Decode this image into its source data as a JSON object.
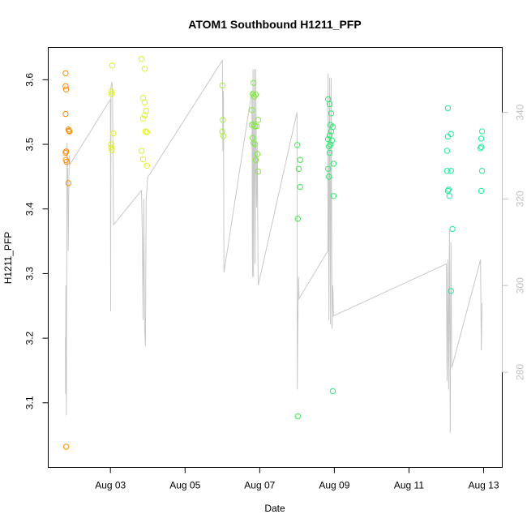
{
  "chart_data": {
    "type": "scatter",
    "title": "ATOM1 Southbound H1211_PFP",
    "xlabel": "Date",
    "ylabel": "H1211_PFP",
    "xlim": [
      "2023-08-01 08:00",
      "2023-08-13 12:00"
    ],
    "ylim": [
      3.0,
      3.65
    ],
    "x_ticks": [
      "Aug 03",
      "Aug 05",
      "Aug 07",
      "Aug 09",
      "Aug 11",
      "Aug 13"
    ],
    "y_ticks": [
      3.1,
      3.2,
      3.3,
      3.4,
      3.5,
      3.6
    ],
    "y2lim": [
      258,
      355
    ],
    "y2_ticks": [
      280,
      300,
      320,
      340
    ],
    "grid": false,
    "points": [
      {
        "x": "2023-08-01 19:10",
        "y": 3.61,
        "color": "#FF8C00"
      },
      {
        "x": "2023-08-01 19:10",
        "y": 3.59,
        "color": "#FF8C00"
      },
      {
        "x": "2023-08-01 19:30",
        "y": 3.585,
        "color": "#FF8C00"
      },
      {
        "x": "2023-08-01 19:10",
        "y": 3.547,
        "color": "#FF8C00"
      },
      {
        "x": "2023-08-01 21:00",
        "y": 3.523,
        "color": "#FF8C00"
      },
      {
        "x": "2023-08-01 21:20",
        "y": 3.521,
        "color": "#FF8C00"
      },
      {
        "x": "2023-08-01 21:40",
        "y": 3.52,
        "color": "#FF8C00"
      },
      {
        "x": "2023-08-01 19:30",
        "y": 3.489,
        "color": "#FF8C00"
      },
      {
        "x": "2023-08-01 19:10",
        "y": 3.487,
        "color": "#FF8C00"
      },
      {
        "x": "2023-08-01 19:20",
        "y": 3.476,
        "color": "#FF8C00"
      },
      {
        "x": "2023-08-01 19:50",
        "y": 3.473,
        "color": "#FF8C00"
      },
      {
        "x": "2023-08-01 21:00",
        "y": 3.44,
        "color": "#FF8C00"
      },
      {
        "x": "2023-08-01 19:30",
        "y": 3.032,
        "color": "#FF8C00"
      },
      {
        "x": "2023-08-03 01:10",
        "y": 3.622,
        "color": "#E0F020"
      },
      {
        "x": "2023-08-03 00:30",
        "y": 3.582,
        "color": "#E0F020"
      },
      {
        "x": "2023-08-03 00:40",
        "y": 3.578,
        "color": "#E0F020"
      },
      {
        "x": "2023-08-03 01:50",
        "y": 3.517,
        "color": "#E0F020"
      },
      {
        "x": "2023-08-03 00:20",
        "y": 3.5,
        "color": "#E0F020"
      },
      {
        "x": "2023-08-03 00:30",
        "y": 3.495,
        "color": "#E0F020"
      },
      {
        "x": "2023-08-03 01:00",
        "y": 3.491,
        "color": "#E0F020"
      },
      {
        "x": "2023-08-03 20:00",
        "y": 3.632,
        "color": "#E0F020"
      },
      {
        "x": "2023-08-03 22:00",
        "y": 3.617,
        "color": "#E0F020"
      },
      {
        "x": "2023-08-03 21:00",
        "y": 3.572,
        "color": "#E0F020"
      },
      {
        "x": "2023-08-03 22:00",
        "y": 3.565,
        "color": "#E0F020"
      },
      {
        "x": "2023-08-03 23:00",
        "y": 3.552,
        "color": "#E0F020"
      },
      {
        "x": "2023-08-03 22:00",
        "y": 3.545,
        "color": "#E0F020"
      },
      {
        "x": "2023-08-03 21:00",
        "y": 3.54,
        "color": "#E0F020"
      },
      {
        "x": "2023-08-03 22:30",
        "y": 3.52,
        "color": "#E0F020"
      },
      {
        "x": "2023-08-03 23:30",
        "y": 3.519,
        "color": "#E0F020"
      },
      {
        "x": "2023-08-03 20:00",
        "y": 3.49,
        "color": "#E0F020"
      },
      {
        "x": "2023-08-03 21:00",
        "y": 3.477,
        "color": "#E0F020"
      },
      {
        "x": "2023-08-03 23:30",
        "y": 3.467,
        "color": "#E0F020"
      },
      {
        "x": "2023-08-06 00:00",
        "y": 3.591,
        "color": "#A6EF40"
      },
      {
        "x": "2023-08-06 00:20",
        "y": 3.538,
        "color": "#A6EF40"
      },
      {
        "x": "2023-08-06 00:00",
        "y": 3.52,
        "color": "#A6EF40"
      },
      {
        "x": "2023-08-06 00:40",
        "y": 3.513,
        "color": "#A6EF40"
      },
      {
        "x": "2023-08-06 20:00",
        "y": 3.595,
        "color": "#80E840"
      },
      {
        "x": "2023-08-06 19:30",
        "y": 3.578,
        "color": "#80E840"
      },
      {
        "x": "2023-08-06 21:30",
        "y": 3.577,
        "color": "#80E840"
      },
      {
        "x": "2023-08-06 20:30",
        "y": 3.574,
        "color": "#80E840"
      },
      {
        "x": "2023-08-06 19:00",
        "y": 3.553,
        "color": "#80E840"
      },
      {
        "x": "2023-08-06 23:00",
        "y": 3.538,
        "color": "#80E840"
      },
      {
        "x": "2023-08-06 19:00",
        "y": 3.53,
        "color": "#80E840"
      },
      {
        "x": "2023-08-06 20:00",
        "y": 3.531,
        "color": "#80E840"
      },
      {
        "x": "2023-08-06 21:00",
        "y": 3.528,
        "color": "#80E840"
      },
      {
        "x": "2023-08-06 22:00",
        "y": 3.528,
        "color": "#80E840"
      },
      {
        "x": "2023-08-06 19:30",
        "y": 3.51,
        "color": "#80E840"
      },
      {
        "x": "2023-08-06 20:00",
        "y": 3.502,
        "color": "#80E840"
      },
      {
        "x": "2023-08-06 21:00",
        "y": 3.5,
        "color": "#80E840"
      },
      {
        "x": "2023-08-06 22:30",
        "y": 3.485,
        "color": "#80E840"
      },
      {
        "x": "2023-08-06 21:30",
        "y": 3.476,
        "color": "#80E840"
      },
      {
        "x": "2023-08-06 23:00",
        "y": 3.458,
        "color": "#80E840"
      },
      {
        "x": "2023-08-08 00:10",
        "y": 3.499,
        "color": "#40E850"
      },
      {
        "x": "2023-08-08 02:00",
        "y": 3.476,
        "color": "#40E850"
      },
      {
        "x": "2023-08-08 01:00",
        "y": 3.462,
        "color": "#40E850"
      },
      {
        "x": "2023-08-08 02:00",
        "y": 3.434,
        "color": "#40E850"
      },
      {
        "x": "2023-08-08 00:30",
        "y": 3.385,
        "color": "#40E850"
      },
      {
        "x": "2023-08-08 00:30",
        "y": 3.079,
        "color": "#40E850"
      },
      {
        "x": "2023-08-08 20:00",
        "y": 3.57,
        "color": "#30E870"
      },
      {
        "x": "2023-08-08 21:00",
        "y": 3.562,
        "color": "#30E870"
      },
      {
        "x": "2023-08-08 22:00",
        "y": 3.548,
        "color": "#30E870"
      },
      {
        "x": "2023-08-08 21:30",
        "y": 3.53,
        "color": "#30E870"
      },
      {
        "x": "2023-08-08 23:00",
        "y": 3.527,
        "color": "#30E870"
      },
      {
        "x": "2023-08-08 22:00",
        "y": 3.52,
        "color": "#30E870"
      },
      {
        "x": "2023-08-08 21:00",
        "y": 3.514,
        "color": "#30E870"
      },
      {
        "x": "2023-08-08 20:00",
        "y": 3.508,
        "color": "#30E870"
      },
      {
        "x": "2023-08-08 22:30",
        "y": 3.506,
        "color": "#30E870"
      },
      {
        "x": "2023-08-08 21:30",
        "y": 3.5,
        "color": "#30E870"
      },
      {
        "x": "2023-08-08 20:30",
        "y": 3.497,
        "color": "#30E870"
      },
      {
        "x": "2023-08-08 21:00",
        "y": 3.487,
        "color": "#30E870"
      },
      {
        "x": "2023-08-08 23:30",
        "y": 3.47,
        "color": "#30E870"
      },
      {
        "x": "2023-08-08 20:00",
        "y": 3.462,
        "color": "#30E870"
      },
      {
        "x": "2023-08-08 20:30",
        "y": 3.45,
        "color": "#30E870"
      },
      {
        "x": "2023-08-08 23:30",
        "y": 3.42,
        "color": "#30E870"
      },
      {
        "x": "2023-08-08 23:00",
        "y": 3.118,
        "color": "#30E870"
      },
      {
        "x": "2023-08-12 01:00",
        "y": 3.556,
        "color": "#20EC98"
      },
      {
        "x": "2023-08-12 03:00",
        "y": 3.516,
        "color": "#20EC98"
      },
      {
        "x": "2023-08-12 01:00",
        "y": 3.512,
        "color": "#20EC98"
      },
      {
        "x": "2023-08-12 00:30",
        "y": 3.49,
        "color": "#20EC98"
      },
      {
        "x": "2023-08-12 00:30",
        "y": 3.459,
        "color": "#20EC98"
      },
      {
        "x": "2023-08-12 03:00",
        "y": 3.459,
        "color": "#20EC98"
      },
      {
        "x": "2023-08-12 01:30",
        "y": 3.43,
        "color": "#20EC98"
      },
      {
        "x": "2023-08-12 01:00",
        "y": 3.428,
        "color": "#20EC98"
      },
      {
        "x": "2023-08-12 02:00",
        "y": 3.42,
        "color": "#20EC98"
      },
      {
        "x": "2023-08-12 04:00",
        "y": 3.369,
        "color": "#20EC98"
      },
      {
        "x": "2023-08-12 03:00",
        "y": 3.273,
        "color": "#20EC98"
      },
      {
        "x": "2023-08-12 23:00",
        "y": 3.52,
        "color": "#20EC98"
      },
      {
        "x": "2023-08-12 22:30",
        "y": 3.509,
        "color": "#20EC98"
      },
      {
        "x": "2023-08-12 22:30",
        "y": 3.496,
        "color": "#20EC98"
      },
      {
        "x": "2023-08-12 22:00",
        "y": 3.494,
        "color": "#20EC98"
      },
      {
        "x": "2023-08-12 23:00",
        "y": 3.459,
        "color": "#20EC98"
      },
      {
        "x": "2023-08-12 22:30",
        "y": 3.428,
        "color": "#20EC98"
      }
    ],
    "secondary_series": {
      "axis": "right",
      "points": [
        [
          "2023-08-01 19:00",
          288
        ],
        [
          "2023-08-01 19:10",
          275
        ],
        [
          "2023-08-01 19:20",
          300
        ],
        [
          "2023-08-01 19:30",
          283
        ],
        [
          "2023-08-01 19:40",
          270
        ],
        [
          "2023-08-01 20:00",
          320
        ],
        [
          "2023-08-01 20:10",
          333
        ],
        [
          "2023-08-01 20:30",
          325
        ],
        [
          "2023-08-01 20:50",
          308
        ],
        [
          "2023-08-01 21:10",
          322
        ],
        [
          "2023-08-01 21:30",
          330
        ],
        [
          "2023-08-01 22:00",
          328
        ],
        [
          "2023-08-03 00:00",
          343
        ],
        [
          "2023-08-03 00:10",
          294
        ],
        [
          "2023-08-03 00:20",
          346
        ],
        [
          "2023-08-03 01:00",
          347
        ],
        [
          "2023-08-03 01:20",
          344
        ],
        [
          "2023-08-03 02:00",
          314
        ],
        [
          "2023-08-03 20:00",
          322
        ],
        [
          "2023-08-03 20:30",
          312
        ],
        [
          "2023-08-03 21:00",
          292
        ],
        [
          "2023-08-03 21:30",
          320
        ],
        [
          "2023-08-03 22:00",
          290
        ],
        [
          "2023-08-03 22:30",
          286
        ],
        [
          "2023-08-03 23:00",
          320
        ],
        [
          "2023-08-04 00:00",
          325
        ],
        [
          "2023-08-06 00:00",
          352
        ],
        [
          "2023-08-06 00:20",
          331
        ],
        [
          "2023-08-06 00:40",
          345
        ],
        [
          "2023-08-06 01:00",
          303
        ],
        [
          "2023-08-06 19:00",
          345
        ],
        [
          "2023-08-06 19:20",
          302
        ],
        [
          "2023-08-06 19:40",
          350
        ],
        [
          "2023-08-06 20:00",
          302
        ],
        [
          "2023-08-06 20:30",
          350
        ],
        [
          "2023-08-06 21:00",
          305
        ],
        [
          "2023-08-06 21:30",
          350
        ],
        [
          "2023-08-06 22:00",
          318
        ],
        [
          "2023-08-06 22:30",
          332
        ],
        [
          "2023-08-06 23:00",
          300
        ],
        [
          "2023-08-08 00:00",
          340
        ],
        [
          "2023-08-08 00:10",
          276
        ],
        [
          "2023-08-08 00:30",
          290
        ],
        [
          "2023-08-08 01:00",
          302
        ],
        [
          "2023-08-08 01:20",
          297
        ],
        [
          "2023-08-08 19:50",
          308
        ],
        [
          "2023-08-08 20:00",
          349
        ],
        [
          "2023-08-08 20:30",
          292
        ],
        [
          "2023-08-08 21:00",
          348
        ],
        [
          "2023-08-08 21:30",
          291
        ],
        [
          "2023-08-08 22:00",
          348
        ],
        [
          "2023-08-08 22:30",
          290
        ],
        [
          "2023-08-08 23:00",
          300
        ],
        [
          "2023-08-08 23:30",
          293
        ],
        [
          "2023-08-12 00:00",
          305
        ],
        [
          "2023-08-12 00:30",
          278
        ],
        [
          "2023-08-12 01:00",
          306
        ],
        [
          "2023-08-12 01:30",
          276
        ],
        [
          "2023-08-12 02:00",
          313
        ],
        [
          "2023-08-12 02:30",
          266
        ],
        [
          "2023-08-12 03:00",
          310
        ],
        [
          "2023-08-12 03:30",
          281
        ],
        [
          "2023-08-12 22:00",
          306
        ],
        [
          "2023-08-12 22:30",
          285
        ],
        [
          "2023-08-12 23:00",
          296
        ]
      ]
    }
  }
}
